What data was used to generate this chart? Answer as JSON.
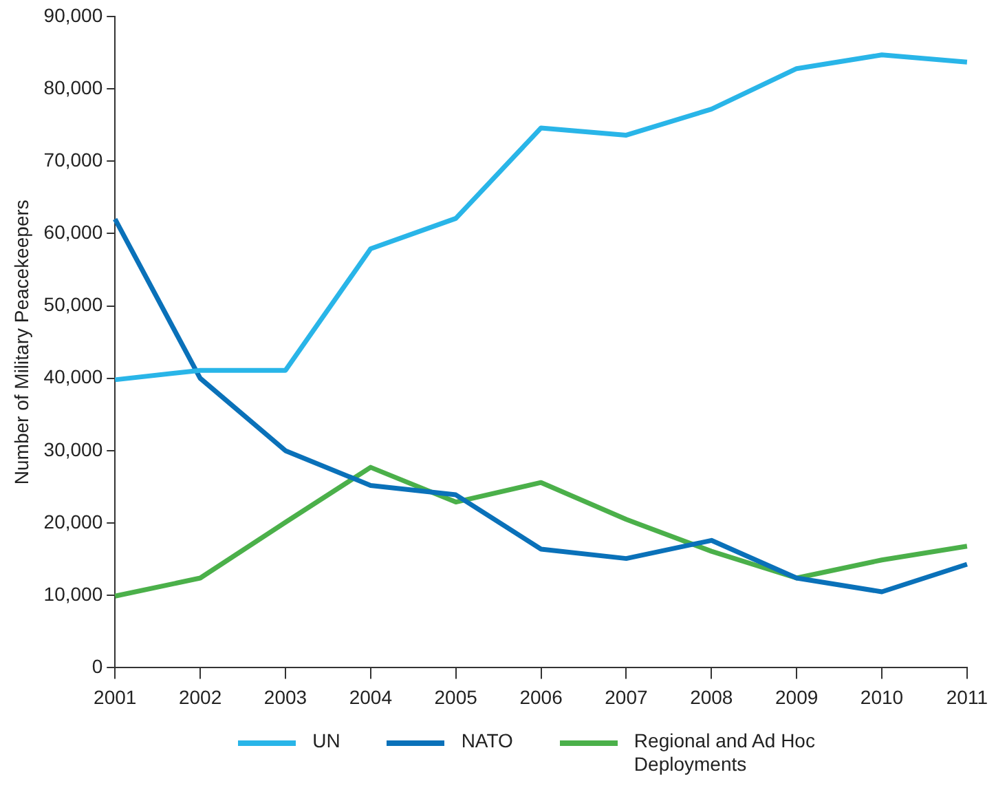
{
  "chart_data": {
    "type": "line",
    "ylabel": "Number of Military Peacekeepers",
    "categories": [
      "2001",
      "2002",
      "2003",
      "2004",
      "2005",
      "2006",
      "2007",
      "2008",
      "2009",
      "2010",
      "2011"
    ],
    "series": [
      {
        "name": "UN",
        "color": "#29b5e8",
        "values": [
          39800,
          41100,
          41100,
          57900,
          62100,
          74600,
          73600,
          77200,
          82800,
          84700,
          83700
        ]
      },
      {
        "name": "NATO",
        "color": "#0a71b9",
        "values": [
          62000,
          40000,
          30000,
          25200,
          23900,
          16400,
          15100,
          17600,
          12400,
          10500,
          14300
        ]
      },
      {
        "name": "Regional and Ad Hoc Deployments",
        "color": "#4bb04a",
        "values": [
          9900,
          12400,
          20100,
          27700,
          22900,
          25600,
          20500,
          16100,
          12400,
          14900,
          16800
        ]
      }
    ],
    "ylim": [
      0,
      90000
    ],
    "yticks": [
      0,
      {
        "value": 10000,
        "label": "10,000"
      },
      {
        "value": 20000,
        "label": "20,000"
      },
      {
        "value": 30000,
        "label": "30,000"
      },
      {
        "value": 40000,
        "label": "40,000"
      },
      {
        "value": 50000,
        "label": "50,000"
      },
      {
        "value": 60000,
        "label": "60,000"
      },
      {
        "value": 70000,
        "label": "70,000"
      },
      {
        "value": 80000,
        "label": "80,000"
      },
      {
        "value": 90000,
        "label": "90,000"
      }
    ],
    "grid": false,
    "legend": "bottom",
    "marker": "none",
    "line_style": "solid"
  }
}
